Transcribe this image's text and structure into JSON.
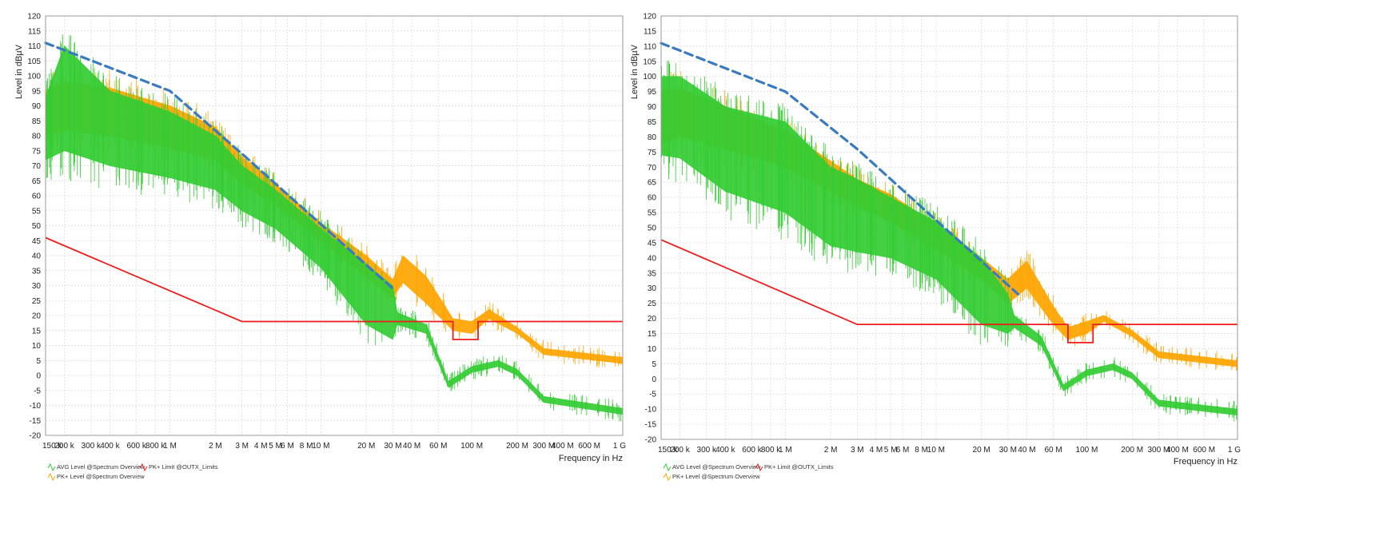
{
  "legend_labels": {
    "avg": "AVG Level @Spectrum Overview",
    "pk": "PK+ Level @Spectrum Overview",
    "limit": "PK+ Limit @OUTX_Limits"
  },
  "colors": {
    "avg": "#33cc33",
    "pk": "#ffa500",
    "limit": "#ee1c1c",
    "dashed_envelope": "#3a7bbf",
    "grid": "#d9d9d9"
  },
  "chart_data": [
    {
      "type": "line",
      "title": "",
      "xlabel": "Frequency in Hz",
      "ylabel": "Level in dBµV",
      "xscale": "log",
      "xlim": [
        150000,
        1000000000
      ],
      "ylim": [
        -20,
        120
      ],
      "yticks": [
        "120",
        "115",
        "110",
        "105",
        "100",
        "95",
        "90",
        "85",
        "80",
        "75",
        "70",
        "65",
        "60",
        "55",
        "50",
        "45",
        "40",
        "35",
        "30",
        "25",
        "20",
        "15",
        "10",
        "5",
        "0",
        "-5",
        "-10",
        "-15",
        "-20"
      ],
      "xticks": [
        {
          "value": 150000,
          "label": "150 k"
        },
        {
          "value": 200000,
          "label": "200 k"
        },
        {
          "value": 300000,
          "label": "300 k"
        },
        {
          "value": 400000,
          "label": "400 k"
        },
        {
          "value": 600000,
          "label": "600 k"
        },
        {
          "value": 800000,
          "label": "800 k"
        },
        {
          "value": 1000000,
          "label": "1 M"
        },
        {
          "value": 2000000,
          "label": "2 M"
        },
        {
          "value": 3000000,
          "label": "3 M"
        },
        {
          "value": 4000000,
          "label": "4 M"
        },
        {
          "value": 5000000,
          "label": "5 M"
        },
        {
          "value": 6000000,
          "label": "6 M"
        },
        {
          "value": 8000000,
          "label": "8 M"
        },
        {
          "value": 10000000,
          "label": "10 M"
        },
        {
          "value": 20000000,
          "label": "20 M"
        },
        {
          "value": 30000000,
          "label": "30 M"
        },
        {
          "value": 40000000,
          "label": "40 M"
        },
        {
          "value": 60000000,
          "label": "60 M"
        },
        {
          "value": 100000000,
          "label": "100 M"
        },
        {
          "value": 200000000,
          "label": "200 M"
        },
        {
          "value": 300000000,
          "label": "300 M"
        },
        {
          "value": 400000000,
          "label": "400 M"
        },
        {
          "value": 600000000,
          "label": "600 M"
        },
        {
          "value": 1000000000,
          "label": "1 G"
        }
      ],
      "grid": true,
      "legend": "bottom-left",
      "series": [
        {
          "name": "PK+ Limit @OUTX_Limits",
          "style": "limit",
          "points": [
            [
              150000,
              46
            ],
            [
              3000000,
              18
            ],
            [
              75000000,
              18
            ],
            [
              75000000,
              12
            ],
            [
              110000000,
              12
            ],
            [
              110000000,
              18
            ],
            [
              1000000000,
              18
            ]
          ]
        },
        {
          "name": "envelope",
          "style": "dashed",
          "points": [
            [
              150000,
              111
            ],
            [
              1000000,
              95
            ],
            [
              3000000,
              74
            ],
            [
              30000000,
              29
            ]
          ]
        },
        {
          "name": "PK+ Level @Spectrum Overview",
          "style": "pk",
          "mode": "band",
          "points": [
            [
              150000,
              80,
              95
            ],
            [
              200000,
              82,
              98
            ],
            [
              400000,
              80,
              96
            ],
            [
              1000000,
              76,
              90
            ],
            [
              2000000,
              72,
              83
            ],
            [
              3000000,
              64,
              73
            ],
            [
              5000000,
              57,
              64
            ],
            [
              10000000,
              45,
              51
            ],
            [
              20000000,
              33,
              40
            ],
            [
              30000000,
              26,
              32
            ],
            [
              35000000,
              31,
              40
            ],
            [
              50000000,
              24,
              33
            ],
            [
              75000000,
              15,
              19
            ],
            [
              100000000,
              14,
              18
            ],
            [
              130000000,
              19,
              22
            ],
            [
              200000000,
              14,
              16
            ],
            [
              300000000,
              7,
              9
            ],
            [
              1000000000,
              4,
              6
            ]
          ]
        },
        {
          "name": "AVG Level @Spectrum Overview",
          "style": "avg",
          "mode": "band",
          "points": [
            [
              150000,
              72,
              93
            ],
            [
              200000,
              75,
              110
            ],
            [
              400000,
              70,
              95
            ],
            [
              1000000,
              66,
              88
            ],
            [
              2000000,
              62,
              80
            ],
            [
              3000000,
              55,
              70
            ],
            [
              5000000,
              49,
              62
            ],
            [
              10000000,
              36,
              49
            ],
            [
              20000000,
              17,
              37
            ],
            [
              30000000,
              12,
              30
            ],
            [
              32000000,
              17,
              21
            ],
            [
              50000000,
              14,
              17
            ],
            [
              70000000,
              -4,
              -2
            ],
            [
              100000000,
              1,
              3
            ],
            [
              150000000,
              3,
              5
            ],
            [
              200000000,
              0,
              2
            ],
            [
              300000000,
              -9,
              -7
            ],
            [
              1000000000,
              -13,
              -11
            ]
          ]
        }
      ]
    },
    {
      "type": "line",
      "title": "",
      "xlabel": "Frequency in Hz",
      "ylabel": "Level in dBµV",
      "xscale": "log",
      "xlim": [
        150000,
        1000000000
      ],
      "ylim": [
        -20,
        120
      ],
      "yticks": [
        "120",
        "115",
        "110",
        "105",
        "100",
        "95",
        "90",
        "85",
        "80",
        "75",
        "70",
        "65",
        "60",
        "55",
        "50",
        "45",
        "40",
        "35",
        "30",
        "25",
        "20",
        "15",
        "10",
        "5",
        "0",
        "-5",
        "-10",
        "-15",
        "-20"
      ],
      "xticks": [
        {
          "value": 150000,
          "label": "150 k"
        },
        {
          "value": 200000,
          "label": "200 k"
        },
        {
          "value": 300000,
          "label": "300 k"
        },
        {
          "value": 400000,
          "label": "400 k"
        },
        {
          "value": 600000,
          "label": "600 k"
        },
        {
          "value": 800000,
          "label": "800 k"
        },
        {
          "value": 1000000,
          "label": "1 M"
        },
        {
          "value": 2000000,
          "label": "2 M"
        },
        {
          "value": 3000000,
          "label": "3 M"
        },
        {
          "value": 4000000,
          "label": "4 M"
        },
        {
          "value": 5000000,
          "label": "5 M"
        },
        {
          "value": 6000000,
          "label": "6 M"
        },
        {
          "value": 8000000,
          "label": "8 M"
        },
        {
          "value": 10000000,
          "label": "10 M"
        },
        {
          "value": 20000000,
          "label": "20 M"
        },
        {
          "value": 30000000,
          "label": "30 M"
        },
        {
          "value": 40000000,
          "label": "40 M"
        },
        {
          "value": 60000000,
          "label": "60 M"
        },
        {
          "value": 100000000,
          "label": "100 M"
        },
        {
          "value": 200000000,
          "label": "200 M"
        },
        {
          "value": 300000000,
          "label": "300 M"
        },
        {
          "value": 400000000,
          "label": "400 M"
        },
        {
          "value": 600000000,
          "label": "600 M"
        },
        {
          "value": 1000000000,
          "label": "1 G"
        }
      ],
      "grid": true,
      "legend": "bottom-left",
      "series": [
        {
          "name": "PK+ Limit @OUTX_Limits",
          "style": "limit",
          "points": [
            [
              150000,
              46
            ],
            [
              3000000,
              18
            ],
            [
              75000000,
              18
            ],
            [
              75000000,
              12
            ],
            [
              110000000,
              12
            ],
            [
              110000000,
              18
            ],
            [
              1000000000,
              18
            ]
          ]
        },
        {
          "name": "envelope",
          "style": "dashed",
          "points": [
            [
              150000,
              111
            ],
            [
              1000000,
              95
            ],
            [
              3000000,
              76
            ],
            [
              35000000,
              28
            ]
          ]
        },
        {
          "name": "PK+ Level @Spectrum Overview",
          "style": "pk",
          "mode": "band",
          "points": [
            [
              150000,
              78,
              95
            ],
            [
              200000,
              80,
              96
            ],
            [
              400000,
              76,
              90
            ],
            [
              1000000,
              70,
              82
            ],
            [
              2000000,
              62,
              72
            ],
            [
              3000000,
              57,
              66
            ],
            [
              5000000,
              52,
              61
            ],
            [
              10000000,
              43,
              51
            ],
            [
              20000000,
              33,
              40
            ],
            [
              30000000,
              25,
              33
            ],
            [
              40000000,
              30,
              39
            ],
            [
              60000000,
              18,
              24
            ],
            [
              75000000,
              13,
              17
            ],
            [
              100000000,
              15,
              19
            ],
            [
              130000000,
              19,
              21
            ],
            [
              200000000,
              14,
              16
            ],
            [
              300000000,
              7,
              9
            ],
            [
              1000000000,
              4,
              6
            ]
          ]
        },
        {
          "name": "AVG Level @Spectrum Overview",
          "style": "avg",
          "mode": "band",
          "points": [
            [
              150000,
              74,
              100
            ],
            [
              200000,
              73,
              100
            ],
            [
              400000,
              62,
              90
            ],
            [
              1000000,
              55,
              85
            ],
            [
              2000000,
              44,
              70
            ],
            [
              3000000,
              42,
              66
            ],
            [
              5000000,
              40,
              60
            ],
            [
              10000000,
              33,
              52
            ],
            [
              20000000,
              18,
              40
            ],
            [
              30000000,
              15,
              28
            ],
            [
              33000000,
              17,
              21
            ],
            [
              50000000,
              11,
              14
            ],
            [
              70000000,
              -4,
              -2
            ],
            [
              100000000,
              1,
              3
            ],
            [
              150000000,
              3,
              5
            ],
            [
              200000000,
              0,
              2
            ],
            [
              300000000,
              -9,
              -7
            ],
            [
              1000000000,
              -12,
              -10
            ]
          ]
        }
      ]
    }
  ]
}
